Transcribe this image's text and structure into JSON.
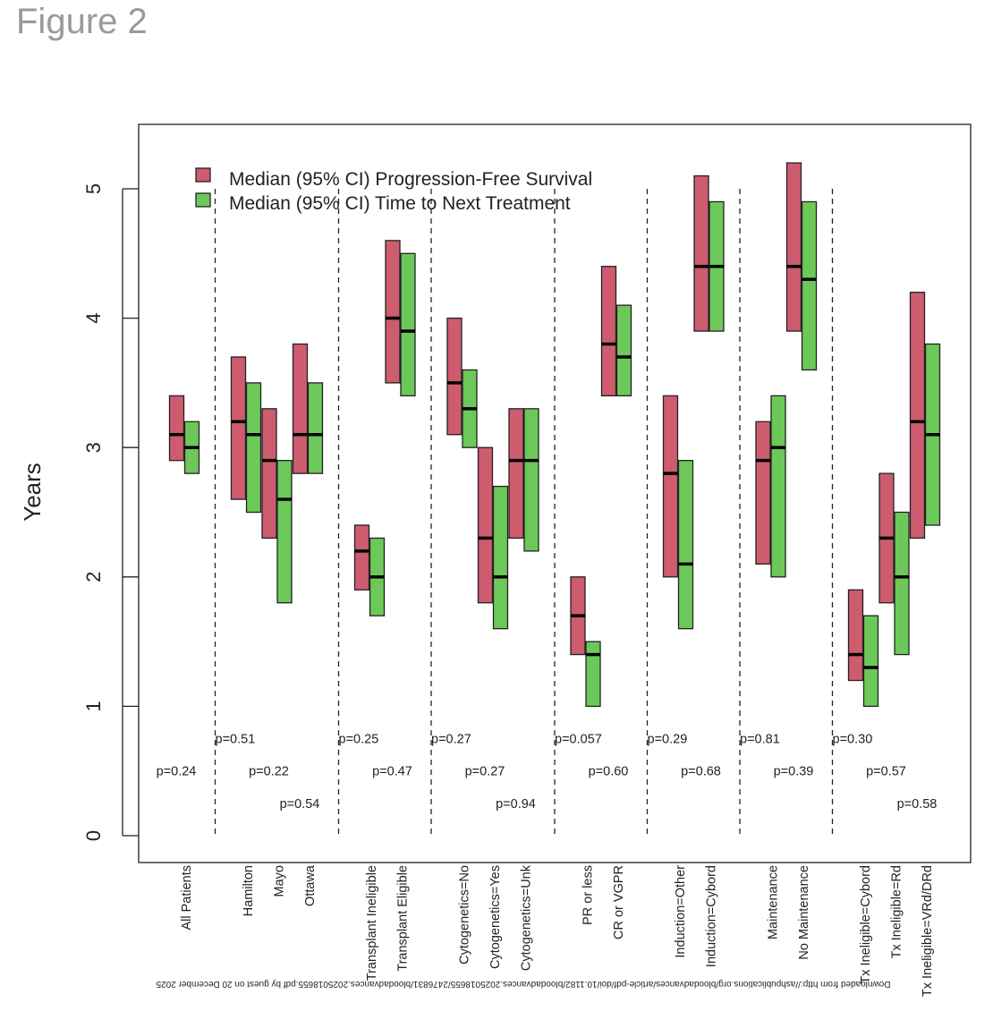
{
  "figure_title": "Figure 2",
  "watermark": "Downloaded from http://ashpublications.org/bloodadvances/article-pdf/doi/10.1182/bloodadvances.2025018655/2476831/bloodadvances.2025018655.pdf by guest on 20 December 2025",
  "chart_data": {
    "type": "bar",
    "subtype": "floating range bars with median marks",
    "title": "",
    "xlabel": "",
    "ylabel": "Years",
    "ylim": [
      0,
      5.5
    ],
    "yticks": [
      0,
      1,
      2,
      3,
      4,
      5
    ],
    "colors": {
      "pfs": "#CD5C6E",
      "ttnt": "#6DC85A"
    },
    "legend": {
      "placement": "top-left",
      "entries": [
        "Median (95% CI) Progression-Free Survival",
        "Median (95% CI) Time to Next Treatment"
      ]
    },
    "group_separators_at_slot": [
      1,
      5,
      8,
      12,
      15,
      18,
      21
    ],
    "categories": [
      {
        "label": "All Patients",
        "slot": 0,
        "pfs": {
          "median": 3.1,
          "low": 2.9,
          "high": 3.4
        },
        "ttnt": {
          "median": 3.0,
          "low": 2.8,
          "high": 3.2
        }
      },
      {
        "label": "Hamilton",
        "slot": 2,
        "pfs": {
          "median": 3.2,
          "low": 2.6,
          "high": 3.7
        },
        "ttnt": {
          "median": 3.1,
          "low": 2.5,
          "high": 3.5
        }
      },
      {
        "label": "Mayo",
        "slot": 3,
        "pfs": {
          "median": 2.9,
          "low": 2.3,
          "high": 3.3
        },
        "ttnt": {
          "median": 2.6,
          "low": 1.8,
          "high": 2.9
        }
      },
      {
        "label": "Ottawa",
        "slot": 4,
        "pfs": {
          "median": 3.1,
          "low": 2.8,
          "high": 3.8
        },
        "ttnt": {
          "median": 3.1,
          "low": 2.8,
          "high": 3.5
        }
      },
      {
        "label": "Transplant Ineligible",
        "slot": 6,
        "pfs": {
          "median": 2.2,
          "low": 1.9,
          "high": 2.4
        },
        "ttnt": {
          "median": 2.0,
          "low": 1.7,
          "high": 2.3
        }
      },
      {
        "label": "Transplant Eligible",
        "slot": 7,
        "pfs": {
          "median": 4.0,
          "low": 3.5,
          "high": 4.6
        },
        "ttnt": {
          "median": 3.9,
          "low": 3.4,
          "high": 4.5
        }
      },
      {
        "label": "Cytogenetics=No",
        "slot": 9,
        "pfs": {
          "median": 3.5,
          "low": 3.1,
          "high": 4.0
        },
        "ttnt": {
          "median": 3.3,
          "low": 3.0,
          "high": 3.6
        }
      },
      {
        "label": "Cytogenetics=Yes",
        "slot": 10,
        "pfs": {
          "median": 2.3,
          "low": 1.8,
          "high": 3.0
        },
        "ttnt": {
          "median": 2.0,
          "low": 1.6,
          "high": 2.7
        }
      },
      {
        "label": "Cytogenetics=Unk",
        "slot": 11,
        "pfs": {
          "median": 2.9,
          "low": 2.3,
          "high": 3.3
        },
        "ttnt": {
          "median": 2.9,
          "low": 2.2,
          "high": 3.3
        }
      },
      {
        "label": "PR or less",
        "slot": 13,
        "pfs": {
          "median": 1.7,
          "low": 1.4,
          "high": 2.0
        },
        "ttnt": {
          "median": 1.4,
          "low": 1.0,
          "high": 1.5
        }
      },
      {
        "label": "CR or VGPR",
        "slot": 14,
        "pfs": {
          "median": 3.8,
          "low": 3.4,
          "high": 4.4
        },
        "ttnt": {
          "median": 3.7,
          "low": 3.4,
          "high": 4.1
        }
      },
      {
        "label": "Induction=Other",
        "slot": 16,
        "pfs": {
          "median": 2.8,
          "low": 2.0,
          "high": 3.4
        },
        "ttnt": {
          "median": 2.1,
          "low": 1.6,
          "high": 2.9
        }
      },
      {
        "label": "Induction=Cybord",
        "slot": 17,
        "pfs": {
          "median": 4.4,
          "low": 3.9,
          "high": 5.1
        },
        "ttnt": {
          "median": 4.4,
          "low": 3.9,
          "high": 4.9
        }
      },
      {
        "label": "Maintenance",
        "slot": 19,
        "pfs": {
          "median": 2.9,
          "low": 2.1,
          "high": 3.2
        },
        "ttnt": {
          "median": 3.0,
          "low": 2.0,
          "high": 3.4
        }
      },
      {
        "label": "No Maintenance",
        "slot": 20,
        "pfs": {
          "median": 4.4,
          "low": 3.9,
          "high": 5.2
        },
        "ttnt": {
          "median": 4.3,
          "low": 3.6,
          "high": 4.9
        }
      },
      {
        "label": "Tx Ineligible=Cybord",
        "slot": 22,
        "pfs": {
          "median": 1.4,
          "low": 1.2,
          "high": 1.9
        },
        "ttnt": {
          "median": 1.3,
          "low": 1.0,
          "high": 1.7
        }
      },
      {
        "label": "Tx Ineligible=Rd",
        "slot": 23,
        "pfs": {
          "median": 2.3,
          "low": 1.8,
          "high": 2.8
        },
        "ttnt": {
          "median": 2.0,
          "low": 1.4,
          "high": 2.5
        }
      },
      {
        "label": "Tx Ineligible=VRd/DRd",
        "slot": 24,
        "pfs": {
          "median": 3.2,
          "low": 2.3,
          "high": 4.2
        },
        "ttnt": {
          "median": 3.1,
          "low": 2.4,
          "high": 3.8
        }
      }
    ],
    "annotations": [
      {
        "text": "p=0.24",
        "slot": 0,
        "y": 0.5,
        "anchor": "category"
      },
      {
        "text": "p=0.51",
        "slot": 1,
        "y": 0.75,
        "anchor": "separator"
      },
      {
        "text": "p=0.22",
        "slot": 3,
        "y": 0.5,
        "anchor": "category"
      },
      {
        "text": "p=0.54",
        "slot": 4,
        "y": 0.25,
        "anchor": "category"
      },
      {
        "text": "p=0.25",
        "slot": 5,
        "y": 0.75,
        "anchor": "separator"
      },
      {
        "text": "p=0.47",
        "slot": 7,
        "y": 0.5,
        "anchor": "category"
      },
      {
        "text": "p=0.27",
        "slot": 8,
        "y": 0.75,
        "anchor": "separator"
      },
      {
        "text": "p=0.27",
        "slot": 10,
        "y": 0.5,
        "anchor": "category"
      },
      {
        "text": "p=0.94",
        "slot": 11,
        "y": 0.25,
        "anchor": "category"
      },
      {
        "text": "p=0.057",
        "slot": 12,
        "y": 0.75,
        "anchor": "separator"
      },
      {
        "text": "p=0.60",
        "slot": 14,
        "y": 0.5,
        "anchor": "category"
      },
      {
        "text": "p=0.29",
        "slot": 15,
        "y": 0.75,
        "anchor": "separator"
      },
      {
        "text": "p=0.68",
        "slot": 17,
        "y": 0.5,
        "anchor": "category"
      },
      {
        "text": "p=0.81",
        "slot": 18,
        "y": 0.75,
        "anchor": "separator"
      },
      {
        "text": "p=0.39",
        "slot": 20,
        "y": 0.5,
        "anchor": "category"
      },
      {
        "text": "p=0.30",
        "slot": 21,
        "y": 0.75,
        "anchor": "separator"
      },
      {
        "text": "p=0.57",
        "slot": 23,
        "y": 0.5,
        "anchor": "category"
      },
      {
        "text": "p=0.58",
        "slot": 24,
        "y": 0.25,
        "anchor": "category"
      }
    ]
  }
}
